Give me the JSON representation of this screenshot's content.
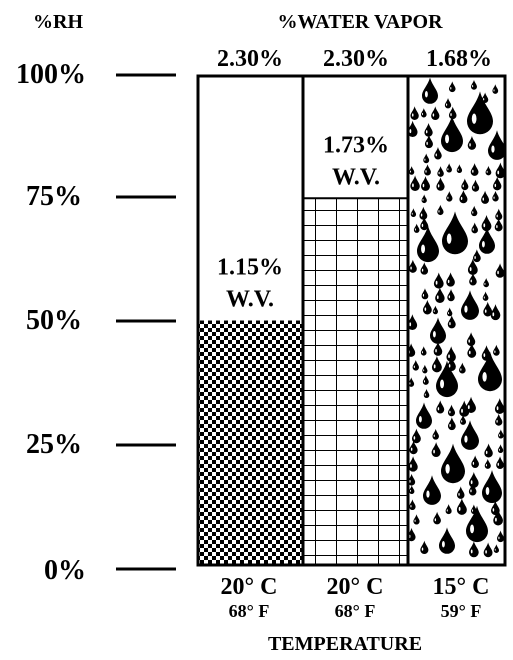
{
  "header": {
    "y_title": "%RH",
    "x_title": "%WATER VAPOR",
    "bottom_title": "TEMPERATURE"
  },
  "rh_ticks": [
    "100%",
    "75%",
    "50%",
    "25%",
    "0%"
  ],
  "columns": [
    {
      "capacity": "2.30%",
      "rh_fraction": 0.5,
      "fill_pattern": "checkerboard",
      "label_value": "1.15%",
      "label_unit": "W.V.",
      "temp_c": "20° C",
      "temp_f": "68° F"
    },
    {
      "capacity": "2.30%",
      "rh_fraction": 0.75,
      "fill_pattern": "grid",
      "label_value": "1.73%",
      "label_unit": "W.V.",
      "temp_c": "20° C",
      "temp_f": "68° F"
    },
    {
      "capacity": "1.68%",
      "rh_fraction": 1.0,
      "fill_pattern": "droplets",
      "label_value": "",
      "label_unit": "",
      "temp_c": "15° C",
      "temp_f": "59° F"
    }
  ],
  "icons": {
    "droplet": "water-drop-icon"
  },
  "colors": {
    "ink": "#000000",
    "paper": "#ffffff"
  }
}
